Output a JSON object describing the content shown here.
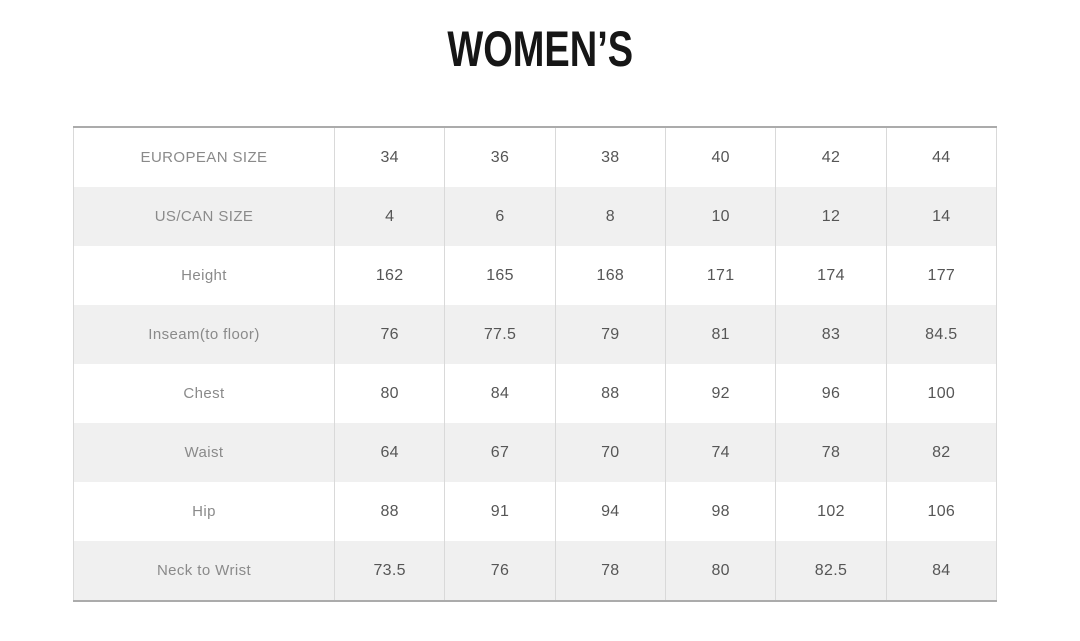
{
  "page": {
    "title": "WOMEN’S"
  },
  "table": {
    "rows": [
      {
        "label": "EUROPEAN SIZE",
        "values": [
          "34",
          "36",
          "38",
          "40",
          "42",
          "44"
        ]
      },
      {
        "label": "US/CAN SIZE",
        "values": [
          "4",
          "6",
          "8",
          "10",
          "12",
          "14"
        ]
      },
      {
        "label": "Height",
        "values": [
          "162",
          "165",
          "168",
          "171",
          "174",
          "177"
        ]
      },
      {
        "label": "Inseam(to floor)",
        "values": [
          "76",
          "77.5",
          "79",
          "81",
          "83",
          "84.5"
        ]
      },
      {
        "label": "Chest",
        "values": [
          "80",
          "84",
          "88",
          "92",
          "96",
          "100"
        ]
      },
      {
        "label": "Waist",
        "values": [
          "64",
          "67",
          "70",
          "74",
          "78",
          "82"
        ]
      },
      {
        "label": "Hip",
        "values": [
          "88",
          "91",
          "94",
          "98",
          "102",
          "106"
        ]
      },
      {
        "label": "Neck to Wrist",
        "values": [
          "73.5",
          "76",
          "78",
          "80",
          "82.5",
          "84"
        ]
      }
    ]
  },
  "colors": {
    "title-text": "#161616",
    "label-text": "#8a8a8a",
    "value-text": "#565656",
    "row-alt": "#f0f0f0",
    "border": "#d9d9d9",
    "border-dark": "#ababab"
  }
}
